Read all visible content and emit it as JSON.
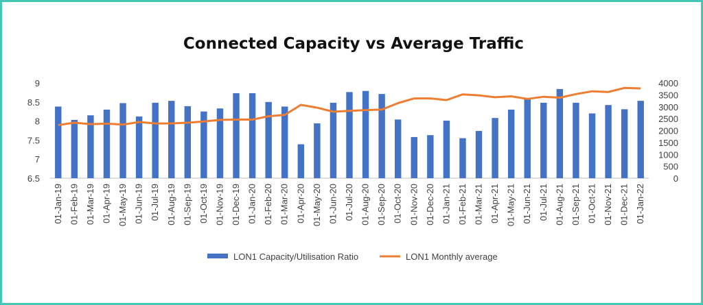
{
  "chart_data": {
    "type": "bar",
    "title": "Connected Capacity vs Average Traffic",
    "categories": [
      "01-Jan-19",
      "01-Feb-19",
      "01-Mar-19",
      "01-Apr-19",
      "01-May-19",
      "01-Jun-19",
      "01-Jul-19",
      "01-Aug-19",
      "01-Sep-19",
      "01-Oct-19",
      "01-Nov-19",
      "01-Dec-19",
      "01-Jan-20",
      "01-Feb-20",
      "01-Mar-20",
      "01-Apr-20",
      "01-May-20",
      "01-Jun-20",
      "01-Jul-20",
      "01-Aug-20",
      "01-Sep-20",
      "01-Oct-20",
      "01-Nov-20",
      "01-Dec-20",
      "01-Jan-21",
      "01-Feb-21",
      "01-Mar-21",
      "01-Apr-21",
      "01-May-21",
      "01-Jun-21",
      "01-Jul-21",
      "01-Aug-21",
      "01-Sep-21",
      "01-Oct-21",
      "01-Nov-21",
      "01-Dec-21",
      "01-Jan-22"
    ],
    "series": [
      {
        "name": "LON1 Capacity/Utilisation Ratio",
        "type": "bar",
        "axis": "left",
        "color": "#4472c4",
        "values": [
          8.38,
          8.03,
          8.15,
          8.3,
          8.47,
          8.12,
          8.48,
          8.53,
          8.39,
          8.25,
          8.33,
          8.73,
          8.73,
          8.5,
          8.38,
          7.39,
          7.94,
          8.48,
          8.76,
          8.79,
          8.71,
          8.04,
          7.58,
          7.63,
          8.01,
          7.55,
          7.74,
          8.08,
          8.3,
          8.6,
          8.48,
          8.84,
          8.48,
          8.2,
          8.42,
          8.31,
          8.53
        ]
      },
      {
        "name": "LON1 Monthly average",
        "type": "line",
        "axis": "right",
        "color": "#ed7d31",
        "values": [
          2230,
          2330,
          2270,
          2290,
          2250,
          2360,
          2300,
          2300,
          2330,
          2380,
          2450,
          2460,
          2460,
          2600,
          2660,
          3080,
          2960,
          2790,
          2830,
          2860,
          2880,
          3150,
          3350,
          3350,
          3280,
          3520,
          3480,
          3400,
          3440,
          3330,
          3420,
          3380,
          3530,
          3650,
          3620,
          3790,
          3770
        ]
      }
    ],
    "ylim_left": [
      6.5,
      9
    ],
    "yticks_left": [
      "6.5",
      "7",
      "7.5",
      "8",
      "8.5",
      "9"
    ],
    "ylim_right": [
      0,
      4000
    ],
    "yticks_right": [
      "0",
      "500",
      "1000",
      "1500",
      "2000",
      "2500",
      "3000",
      "3500",
      "4000"
    ],
    "grid": false,
    "legend_position": "bottom"
  }
}
